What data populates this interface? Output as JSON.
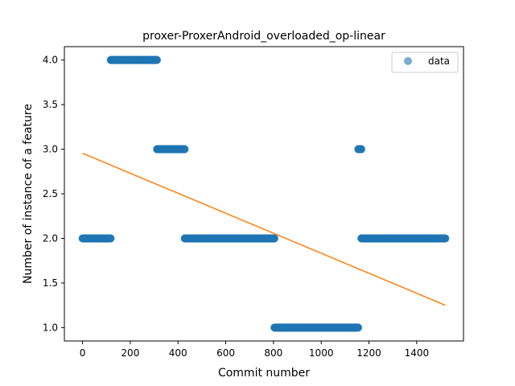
{
  "chart_data": {
    "type": "scatter",
    "title": "proxer-ProxerAndroid_overloaded_op-linear",
    "xlabel": "Commit number",
    "ylabel": "Number of instance of a feature",
    "xlim": [
      -76,
      1596
    ],
    "ylim": [
      0.85,
      4.15
    ],
    "x_ticks": [
      0,
      200,
      400,
      600,
      800,
      1000,
      1200,
      1400
    ],
    "x_tick_labels": [
      "0",
      "200",
      "400",
      "600",
      "800",
      "1000",
      "1200",
      "1400"
    ],
    "y_ticks": [
      1.0,
      1.5,
      2.0,
      2.5,
      3.0,
      3.5,
      4.0
    ],
    "y_tick_labels": [
      "1.0",
      "1.5",
      "2.0",
      "2.5",
      "3.0",
      "3.5",
      "4.0"
    ],
    "grid": false,
    "legend_position": "top-right",
    "series": [
      {
        "name": "data",
        "kind": "scatter",
        "color": "#1f77b4",
        "runs": [
          {
            "x_start": 0,
            "x_end": 118,
            "y": 2
          },
          {
            "x_start": 118,
            "x_end": 312,
            "y": 4
          },
          {
            "x_start": 312,
            "x_end": 428,
            "y": 3
          },
          {
            "x_start": 428,
            "x_end": 804,
            "y": 2
          },
          {
            "x_start": 804,
            "x_end": 1155,
            "y": 1
          },
          {
            "x_start": 1155,
            "x_end": 1168,
            "y": 3
          },
          {
            "x_start": 1168,
            "x_end": 1520,
            "y": 2
          }
        ]
      },
      {
        "kind": "line",
        "color": "#ff7f0e",
        "x": [
          0,
          1520
        ],
        "y": [
          2.955,
          1.25
        ]
      }
    ]
  }
}
